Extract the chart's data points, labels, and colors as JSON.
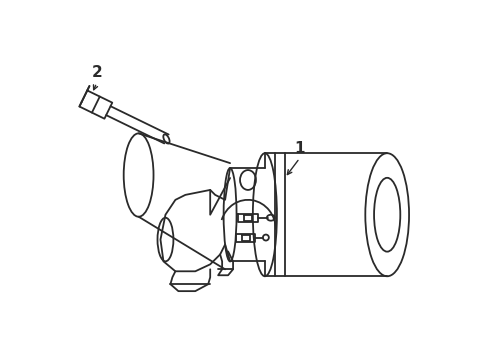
{
  "bg_color": "#ffffff",
  "line_color": "#2a2a2a",
  "label1_text": "1",
  "label2_text": "2",
  "label_fontsize": 11,
  "lw": 1.3
}
